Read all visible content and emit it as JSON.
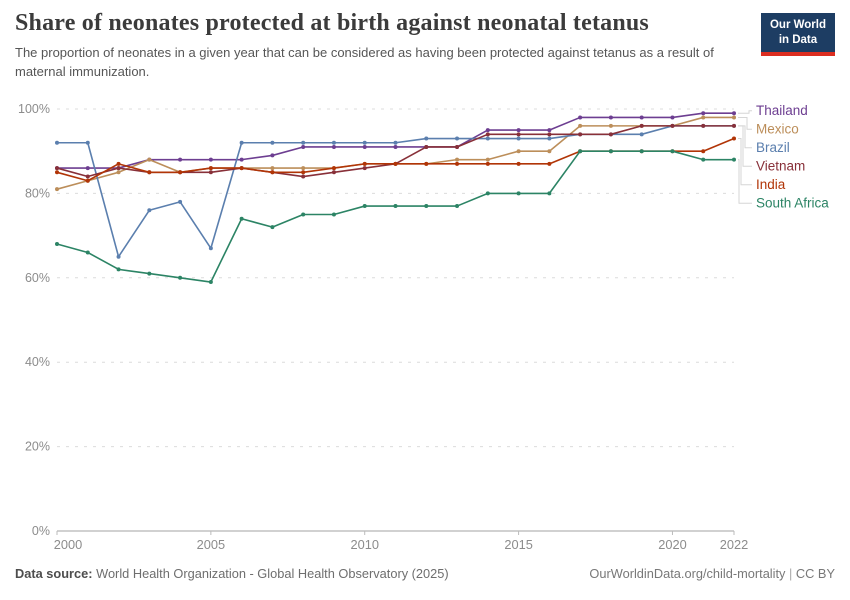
{
  "header": {
    "title": "Share of neonates protected at birth against neonatal tetanus",
    "subtitle": "The proportion of neonates in a given year that can be considered as having been protected against tetanus as a result of maternal immunization.",
    "logo": {
      "line1": "Our World",
      "line2": "in Data",
      "bg_color": "#1d3d63",
      "accent_color": "#dc2d20"
    }
  },
  "chart_data": {
    "type": "line",
    "title": "Share of neonates protected at birth against neonatal tetanus",
    "x": [
      2000,
      2001,
      2002,
      2003,
      2004,
      2005,
      2006,
      2007,
      2008,
      2009,
      2010,
      2011,
      2012,
      2013,
      2014,
      2015,
      2016,
      2017,
      2018,
      2019,
      2020,
      2021,
      2022
    ],
    "series": [
      {
        "name": "Thailand",
        "color": "#6d3e91",
        "values": [
          86,
          86,
          86,
          88,
          88,
          88,
          88,
          89,
          91,
          91,
          91,
          91,
          91,
          91,
          95,
          95,
          95,
          98,
          98,
          98,
          98,
          99,
          99
        ]
      },
      {
        "name": "Mexico",
        "color": "#bc8e5a",
        "values": [
          81,
          83,
          85,
          88,
          85,
          86,
          86,
          86,
          86,
          86,
          87,
          87,
          87,
          88,
          88,
          90,
          90,
          96,
          96,
          96,
          96,
          98,
          98
        ]
      },
      {
        "name": "Brazil",
        "color": "#5b7fae",
        "values": [
          92,
          92,
          65,
          76,
          78,
          67,
          92,
          92,
          92,
          92,
          92,
          92,
          93,
          93,
          93,
          93,
          93,
          94,
          94,
          94,
          96,
          96,
          96
        ]
      },
      {
        "name": "Vietnam",
        "color": "#883039",
        "values": [
          86,
          84,
          86,
          85,
          85,
          85,
          86,
          85,
          84,
          85,
          86,
          87,
          91,
          91,
          94,
          94,
          94,
          94,
          94,
          96,
          96,
          96,
          96
        ]
      },
      {
        "name": "India",
        "color": "#b13507",
        "values": [
          85,
          83,
          87,
          85,
          85,
          86,
          86,
          85,
          85,
          86,
          87,
          87,
          87,
          87,
          87,
          87,
          87,
          90,
          90,
          90,
          90,
          90,
          93
        ]
      },
      {
        "name": "South Africa",
        "color": "#2c8465",
        "values": [
          68,
          66,
          62,
          61,
          60,
          59,
          74,
          72,
          75,
          75,
          77,
          77,
          77,
          77,
          80,
          80,
          80,
          90,
          90,
          90,
          90,
          88,
          88
        ]
      }
    ],
    "ylim": [
      0,
      100
    ],
    "yticks": [
      0,
      20,
      40,
      60,
      80,
      100
    ],
    "ytick_suffix": "%",
    "xticks": [
      2000,
      2005,
      2010,
      2015,
      2020,
      2022
    ],
    "grid": "dashed-horizontal",
    "legend_position": "right"
  },
  "footer": {
    "source_label": "Data source:",
    "source_text": "World Health Organization - Global Health Observatory (2025)",
    "url": "OurWorldinData.org/child-mortality",
    "separator": " | ",
    "license": "CC BY"
  }
}
